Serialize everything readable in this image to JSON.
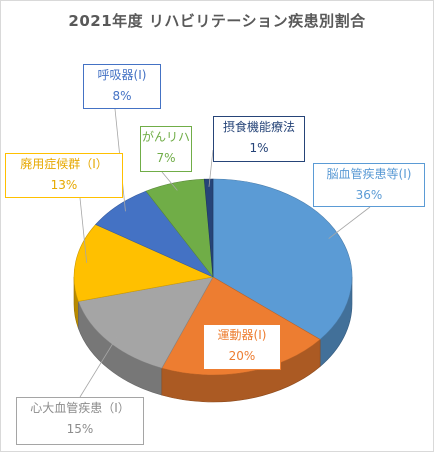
{
  "chart_data": {
    "type": "pie",
    "title": "2021年度 リハビリテーション疾患別割合",
    "slices": [
      {
        "label": "脳血管疾患等(Ⅰ)",
        "value": 36,
        "display": "36%",
        "color": "#5b9bd5"
      },
      {
        "label": "運動器(Ⅰ)",
        "value": 20,
        "display": "20%",
        "color": "#ed7d31"
      },
      {
        "label": "心大血管疾患（Ⅰ）",
        "value": 15,
        "display": "15%",
        "color": "#a5a5a5"
      },
      {
        "label": "廃用症候群（Ⅰ）",
        "value": 13,
        "display": "13%",
        "color": "#ffc000"
      },
      {
        "label": "呼吸器(Ⅰ)",
        "value": 8,
        "display": "8%",
        "color": "#4472c4"
      },
      {
        "label": "がんリハ",
        "value": 7,
        "display": "7%",
        "color": "#70ad47"
      },
      {
        "label": "摂食機能療法",
        "value": 1,
        "display": "1%",
        "color": "#264478"
      }
    ]
  }
}
